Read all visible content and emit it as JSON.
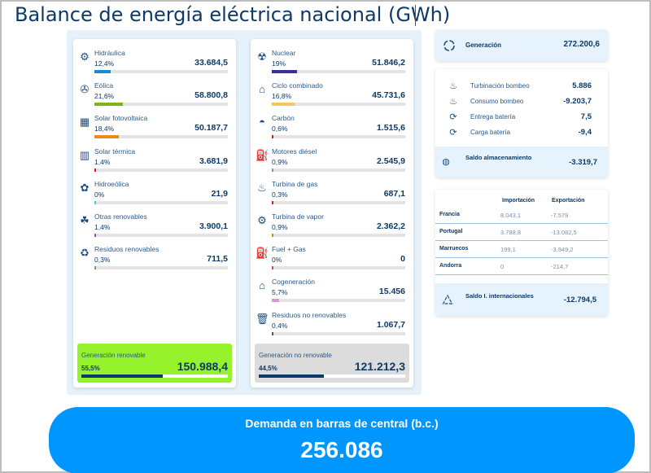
{
  "title": "Balance de energía eléctrica nacional (GWh)",
  "renewable": {
    "items": [
      {
        "label": "Hidráulica",
        "pct": "12,4%",
        "value": "33.684,5",
        "color": "#1e88d0",
        "icon": "hydro-icon",
        "glyph": "⚙"
      },
      {
        "label": "Eólica",
        "pct": "21,6%",
        "value": "58.800,8",
        "color": "#7cb518",
        "icon": "wind-icon",
        "glyph": "✇"
      },
      {
        "label": "Solar fotovoltaica",
        "pct": "18,4%",
        "value": "50.187,7",
        "color": "#e98c1c",
        "icon": "solar-pv-icon",
        "glyph": "▦"
      },
      {
        "label": "Solar térmica",
        "pct": "1,4%",
        "value": "3.681,9",
        "color": "#e01e1e",
        "icon": "solar-thermal-icon",
        "glyph": "▥"
      },
      {
        "label": "Hidroeólica",
        "pct": "0%",
        "value": "21,9",
        "color": "#3fd3e6",
        "icon": "hydro-wind-icon",
        "glyph": "✿"
      },
      {
        "label": "Otras renovables",
        "pct": "1,4%",
        "value": "3.900,1",
        "color": "#9b4fc4",
        "icon": "other-renewables-icon",
        "glyph": "☘"
      },
      {
        "label": "Residuos renovables",
        "pct": "0,3%",
        "value": "711,5",
        "color": "#8a8a8a",
        "icon": "renewable-waste-icon",
        "glyph": "♻"
      }
    ],
    "summary": {
      "label": "Generación renovable",
      "pct": "55,5%",
      "value": "150.988,4",
      "bg": "#96f22a"
    }
  },
  "nonrenewable": {
    "items": [
      {
        "label": "Nuclear",
        "pct": "19%",
        "value": "51.846,2",
        "color": "#3a318f",
        "icon": "nuclear-icon",
        "glyph": "☢"
      },
      {
        "label": "Ciclo combinado",
        "pct": "16,8%",
        "value": "45.731,6",
        "color": "#f7c560",
        "icon": "combined-cycle-icon",
        "glyph": "⌂"
      },
      {
        "label": "Carbón",
        "pct": "0,6%",
        "value": "1.515,6",
        "color": "#a2361b",
        "icon": "coal-icon",
        "glyph": "◓"
      },
      {
        "label": "Motores diésel",
        "pct": "0,9%",
        "value": "2.545,9",
        "color": "#8a9a8a",
        "icon": "diesel-engine-icon",
        "glyph": "⛽"
      },
      {
        "label": "Turbina de gas",
        "pct": "0,3%",
        "value": "687,1",
        "color": "#d0202a",
        "icon": "gas-turbine-icon",
        "glyph": "♨"
      },
      {
        "label": "Turbina de vapor",
        "pct": "0,9%",
        "value": "2.362,2",
        "color": "#b8941a",
        "icon": "steam-turbine-icon",
        "glyph": "⚙"
      },
      {
        "label": "Fuel + Gas",
        "pct": "0%",
        "value": "0",
        "color": "#d24a4a",
        "icon": "fuel-gas-icon",
        "glyph": "⛽"
      },
      {
        "label": "Cogeneración",
        "pct": "5,7%",
        "value": "15.456",
        "color": "#d79ad0",
        "icon": "cogeneration-icon",
        "glyph": "⌂"
      },
      {
        "label": "Residuos no renovables",
        "pct": "0,4%",
        "value": "1.067,7",
        "color": "#555555",
        "icon": "nonrenewable-waste-icon",
        "glyph": "🗑"
      }
    ],
    "summary": {
      "label": "Generación no renovable",
      "pct": "44,5%",
      "value": "121.212,3",
      "bg": "#dcdcdc"
    }
  },
  "generation": {
    "label": "Generación",
    "value": "272.200,6"
  },
  "storage": {
    "rows": [
      {
        "label": "Turbinación bombeo",
        "value": "5.886",
        "icon": "pumped-turbine-icon",
        "glyph": "♨"
      },
      {
        "label": "Consumo bombeo",
        "value": "-9.203,7",
        "icon": "pumped-consumption-icon",
        "glyph": "♨"
      },
      {
        "label": "Entrega batería",
        "value": "7,5",
        "icon": "battery-delivery-icon",
        "glyph": "⟳"
      },
      {
        "label": "Carga batería",
        "value": "-9,4",
        "icon": "battery-charge-icon",
        "glyph": "⟳"
      }
    ],
    "total": {
      "label": "Saldo almacenamiento",
      "value": "-3.319,7"
    }
  },
  "international": {
    "headers": [
      "Importación",
      "Exportación"
    ],
    "rows": [
      {
        "country": "Francia",
        "import": "8.043,1",
        "export": "-7.579"
      },
      {
        "country": "Portugal",
        "import": "3.788,8",
        "export": "-13.082,5"
      },
      {
        "country": "Marruecos",
        "import": "199,1",
        "export": "-3.949,2"
      },
      {
        "country": "Andorra",
        "import": "0",
        "export": "-214,7"
      }
    ],
    "total": {
      "label": "Saldo I. internacionales",
      "value": "-12.794,5"
    }
  },
  "demand": {
    "label": "Demanda en barras de central (b.c.)",
    "value": "256.086"
  }
}
